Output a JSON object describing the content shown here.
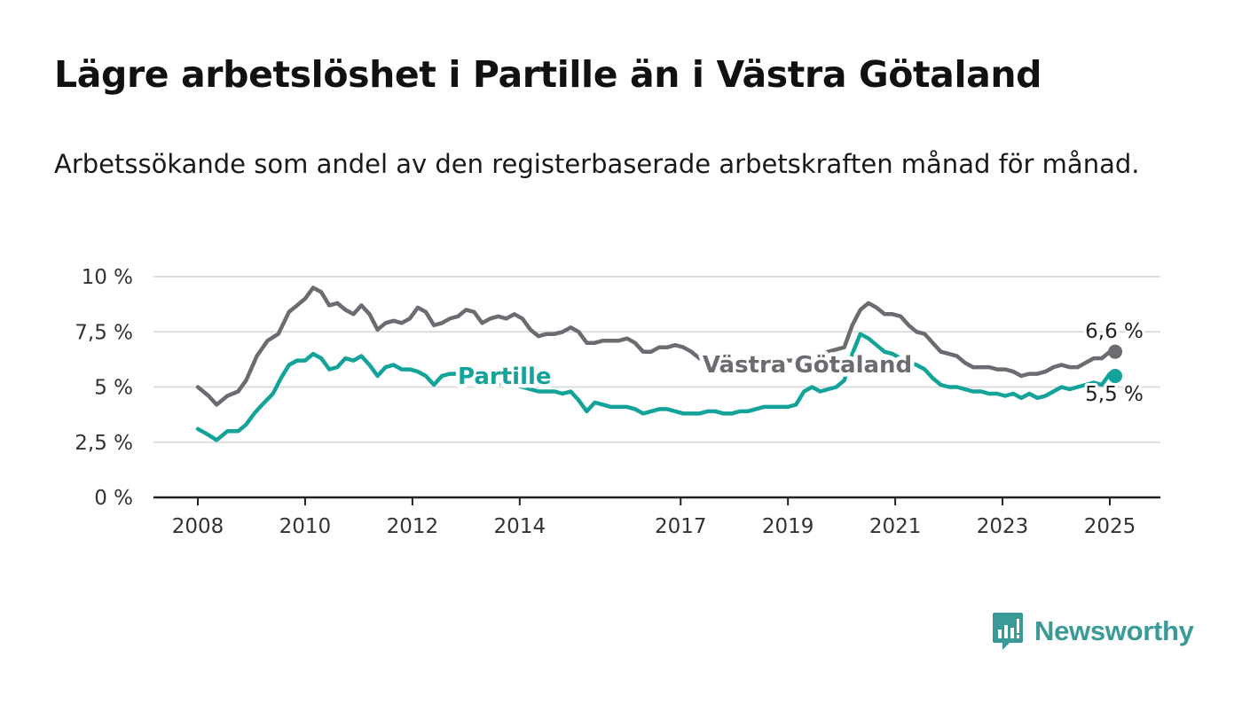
{
  "title": "Lägre arbetslöshet i Partille än i Västra Götaland",
  "subtitle": "Arbetssökande som andel av den registerbaserade arbetskraften månad för månad.",
  "brand": {
    "name": "Newsworthy",
    "color": "#3a9a97",
    "icon": "newsworthy-logo-icon"
  },
  "colors": {
    "partille": "#13a39a",
    "vastra_gotaland": "#6b6b72",
    "grid": "#dcdcdc",
    "axis": "#222222"
  },
  "chart_data": {
    "type": "line",
    "title": "Lägre arbetslöshet i Partille än i Västra Götaland",
    "subtitle": "Arbetssökande som andel av den registerbaserade arbetskraften månad för månad.",
    "xlabel": "",
    "ylabel": "",
    "xlim": [
      2008,
      2025.1
    ],
    "ylim": [
      0,
      10
    ],
    "x_ticks": [
      2008,
      2010,
      2012,
      2014,
      2017,
      2019,
      2021,
      2023,
      2025
    ],
    "x_tick_labels": [
      "2008",
      "2010",
      "2012",
      "2014",
      "2017",
      "2019",
      "2021",
      "2023",
      "2025"
    ],
    "y_ticks": [
      0,
      2.5,
      5,
      7.5,
      10
    ],
    "y_tick_labels": [
      "0 %",
      "2,5 %",
      "5 %",
      "7,5 %",
      "10 %"
    ],
    "grid": true,
    "legend": "none (direct labels)",
    "series": [
      {
        "name": "Västra Götaland",
        "color": "#6b6b72",
        "end_label": "6,6 %",
        "points": [
          [
            2008.0,
            5.0
          ],
          [
            2008.2,
            4.6
          ],
          [
            2008.35,
            4.2
          ],
          [
            2008.55,
            4.6
          ],
          [
            2008.75,
            4.8
          ],
          [
            2008.9,
            5.3
          ],
          [
            2009.1,
            6.4
          ],
          [
            2009.3,
            7.1
          ],
          [
            2009.5,
            7.4
          ],
          [
            2009.7,
            8.4
          ],
          [
            2009.85,
            8.7
          ],
          [
            2010.0,
            9.0
          ],
          [
            2010.15,
            9.5
          ],
          [
            2010.3,
            9.3
          ],
          [
            2010.45,
            8.7
          ],
          [
            2010.6,
            8.8
          ],
          [
            2010.75,
            8.5
          ],
          [
            2010.9,
            8.3
          ],
          [
            2011.05,
            8.7
          ],
          [
            2011.2,
            8.3
          ],
          [
            2011.35,
            7.6
          ],
          [
            2011.5,
            7.9
          ],
          [
            2011.65,
            8.0
          ],
          [
            2011.8,
            7.9
          ],
          [
            2011.95,
            8.1
          ],
          [
            2012.1,
            8.6
          ],
          [
            2012.25,
            8.4
          ],
          [
            2012.4,
            7.8
          ],
          [
            2012.55,
            7.9
          ],
          [
            2012.7,
            8.1
          ],
          [
            2012.85,
            8.2
          ],
          [
            2013.0,
            8.5
          ],
          [
            2013.15,
            8.4
          ],
          [
            2013.3,
            7.9
          ],
          [
            2013.45,
            8.1
          ],
          [
            2013.6,
            8.2
          ],
          [
            2013.75,
            8.1
          ],
          [
            2013.9,
            8.3
          ],
          [
            2014.05,
            8.1
          ],
          [
            2014.2,
            7.6
          ],
          [
            2014.35,
            7.3
          ],
          [
            2014.5,
            7.4
          ],
          [
            2014.65,
            7.4
          ],
          [
            2014.8,
            7.5
          ],
          [
            2014.95,
            7.7
          ],
          [
            2015.1,
            7.5
          ],
          [
            2015.25,
            7.0
          ],
          [
            2015.4,
            7.0
          ],
          [
            2015.55,
            7.1
          ],
          [
            2015.7,
            7.1
          ],
          [
            2015.85,
            7.1
          ],
          [
            2016.0,
            7.2
          ],
          [
            2016.15,
            7.0
          ],
          [
            2016.3,
            6.6
          ],
          [
            2016.45,
            6.6
          ],
          [
            2016.6,
            6.8
          ],
          [
            2016.75,
            6.8
          ],
          [
            2016.9,
            6.9
          ],
          [
            2017.05,
            6.8
          ],
          [
            2017.2,
            6.6
          ],
          [
            2017.35,
            6.3
          ],
          [
            2017.5,
            6.2
          ],
          [
            2017.65,
            6.1
          ],
          [
            2017.8,
            6.1
          ],
          [
            2017.95,
            6.0
          ],
          [
            2018.1,
            6.0
          ],
          [
            2018.25,
            6.0
          ],
          [
            2018.4,
            6.1
          ],
          [
            2018.55,
            6.0
          ],
          [
            2018.7,
            6.1
          ],
          [
            2018.85,
            6.1
          ],
          [
            2019.0,
            6.2
          ],
          [
            2019.15,
            6.2
          ],
          [
            2019.3,
            6.3
          ],
          [
            2019.45,
            6.4
          ],
          [
            2019.6,
            6.5
          ],
          [
            2019.75,
            6.6
          ],
          [
            2019.9,
            6.7
          ],
          [
            2020.05,
            6.8
          ],
          [
            2020.2,
            7.8
          ],
          [
            2020.35,
            8.5
          ],
          [
            2020.5,
            8.8
          ],
          [
            2020.65,
            8.6
          ],
          [
            2020.8,
            8.3
          ],
          [
            2020.95,
            8.3
          ],
          [
            2021.1,
            8.2
          ],
          [
            2021.25,
            7.8
          ],
          [
            2021.4,
            7.5
          ],
          [
            2021.55,
            7.4
          ],
          [
            2021.7,
            7.0
          ],
          [
            2021.85,
            6.6
          ],
          [
            2022.0,
            6.5
          ],
          [
            2022.15,
            6.4
          ],
          [
            2022.3,
            6.1
          ],
          [
            2022.45,
            5.9
          ],
          [
            2022.6,
            5.9
          ],
          [
            2022.75,
            5.9
          ],
          [
            2022.9,
            5.8
          ],
          [
            2023.05,
            5.8
          ],
          [
            2023.2,
            5.7
          ],
          [
            2023.35,
            5.5
          ],
          [
            2023.5,
            5.6
          ],
          [
            2023.65,
            5.6
          ],
          [
            2023.8,
            5.7
          ],
          [
            2023.95,
            5.9
          ],
          [
            2024.1,
            6.0
          ],
          [
            2024.25,
            5.9
          ],
          [
            2024.4,
            5.9
          ],
          [
            2024.55,
            6.1
          ],
          [
            2024.7,
            6.3
          ],
          [
            2024.85,
            6.3
          ],
          [
            2025.0,
            6.6
          ],
          [
            2025.1,
            6.6
          ]
        ]
      },
      {
        "name": "Partille",
        "color": "#13a39a",
        "end_label": "5,5 %",
        "points": [
          [
            2008.0,
            3.1
          ],
          [
            2008.15,
            2.9
          ],
          [
            2008.35,
            2.6
          ],
          [
            2008.55,
            3.0
          ],
          [
            2008.75,
            3.0
          ],
          [
            2008.9,
            3.3
          ],
          [
            2009.05,
            3.8
          ],
          [
            2009.2,
            4.2
          ],
          [
            2009.4,
            4.7
          ],
          [
            2009.55,
            5.4
          ],
          [
            2009.7,
            6.0
          ],
          [
            2009.85,
            6.2
          ],
          [
            2010.0,
            6.2
          ],
          [
            2010.15,
            6.5
          ],
          [
            2010.3,
            6.3
          ],
          [
            2010.45,
            5.8
          ],
          [
            2010.6,
            5.9
          ],
          [
            2010.75,
            6.3
          ],
          [
            2010.9,
            6.2
          ],
          [
            2011.05,
            6.4
          ],
          [
            2011.2,
            6.0
          ],
          [
            2011.35,
            5.5
          ],
          [
            2011.5,
            5.9
          ],
          [
            2011.65,
            6.0
          ],
          [
            2011.8,
            5.8
          ],
          [
            2011.95,
            5.8
          ],
          [
            2012.1,
            5.7
          ],
          [
            2012.25,
            5.5
          ],
          [
            2012.4,
            5.1
          ],
          [
            2012.55,
            5.5
          ],
          [
            2012.7,
            5.6
          ],
          [
            2012.85,
            5.6
          ],
          [
            2013.0,
            5.5
          ],
          [
            2013.15,
            5.3
          ],
          [
            2013.3,
            5.1
          ],
          [
            2013.45,
            5.1
          ],
          [
            2013.6,
            5.2
          ],
          [
            2013.75,
            5.1
          ],
          [
            2013.9,
            5.1
          ],
          [
            2014.05,
            5.0
          ],
          [
            2014.2,
            4.9
          ],
          [
            2014.35,
            4.8
          ],
          [
            2014.5,
            4.8
          ],
          [
            2014.65,
            4.8
          ],
          [
            2014.8,
            4.7
          ],
          [
            2014.95,
            4.8
          ],
          [
            2015.1,
            4.4
          ],
          [
            2015.25,
            3.9
          ],
          [
            2015.4,
            4.3
          ],
          [
            2015.55,
            4.2
          ],
          [
            2015.7,
            4.1
          ],
          [
            2015.85,
            4.1
          ],
          [
            2016.0,
            4.1
          ],
          [
            2016.15,
            4.0
          ],
          [
            2016.3,
            3.8
          ],
          [
            2016.45,
            3.9
          ],
          [
            2016.6,
            4.0
          ],
          [
            2016.75,
            4.0
          ],
          [
            2016.9,
            3.9
          ],
          [
            2017.05,
            3.8
          ],
          [
            2017.2,
            3.8
          ],
          [
            2017.35,
            3.8
          ],
          [
            2017.5,
            3.9
          ],
          [
            2017.65,
            3.9
          ],
          [
            2017.8,
            3.8
          ],
          [
            2017.95,
            3.8
          ],
          [
            2018.1,
            3.9
          ],
          [
            2018.25,
            3.9
          ],
          [
            2018.4,
            4.0
          ],
          [
            2018.55,
            4.1
          ],
          [
            2018.7,
            4.1
          ],
          [
            2018.85,
            4.1
          ],
          [
            2019.0,
            4.1
          ],
          [
            2019.15,
            4.2
          ],
          [
            2019.3,
            4.8
          ],
          [
            2019.45,
            5.0
          ],
          [
            2019.6,
            4.8
          ],
          [
            2019.75,
            4.9
          ],
          [
            2019.9,
            5.0
          ],
          [
            2020.05,
            5.3
          ],
          [
            2020.2,
            6.5
          ],
          [
            2020.35,
            7.4
          ],
          [
            2020.5,
            7.2
          ],
          [
            2020.65,
            6.9
          ],
          [
            2020.8,
            6.6
          ],
          [
            2020.95,
            6.5
          ],
          [
            2021.1,
            6.3
          ],
          [
            2021.25,
            6.1
          ],
          [
            2021.4,
            6.0
          ],
          [
            2021.55,
            5.8
          ],
          [
            2021.7,
            5.4
          ],
          [
            2021.85,
            5.1
          ],
          [
            2022.0,
            5.0
          ],
          [
            2022.15,
            5.0
          ],
          [
            2022.3,
            4.9
          ],
          [
            2022.45,
            4.8
          ],
          [
            2022.6,
            4.8
          ],
          [
            2022.75,
            4.7
          ],
          [
            2022.9,
            4.7
          ],
          [
            2023.05,
            4.6
          ],
          [
            2023.2,
            4.7
          ],
          [
            2023.35,
            4.5
          ],
          [
            2023.5,
            4.7
          ],
          [
            2023.65,
            4.5
          ],
          [
            2023.8,
            4.6
          ],
          [
            2023.95,
            4.8
          ],
          [
            2024.1,
            5.0
          ],
          [
            2024.25,
            4.9
          ],
          [
            2024.4,
            5.0
          ],
          [
            2024.55,
            5.1
          ],
          [
            2024.7,
            5.2
          ],
          [
            2024.85,
            5.1
          ],
          [
            2025.0,
            5.6
          ],
          [
            2025.1,
            5.5
          ]
        ]
      }
    ]
  }
}
